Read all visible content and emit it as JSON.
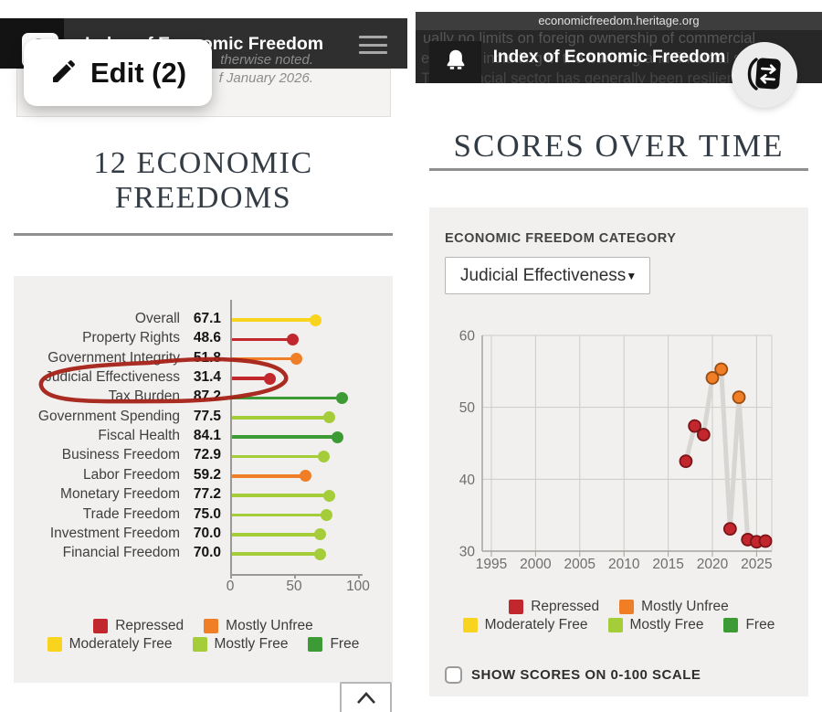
{
  "colors": {
    "red": "#c1272d",
    "orange": "#ef7e26",
    "yellow": "#f8d41f",
    "lightgreen": "#a5cd3a",
    "green": "#3d9b35"
  },
  "legend": {
    "rows": [
      [
        {
          "label": "Repressed",
          "color": "red"
        },
        {
          "label": "Mostly Unfree",
          "color": "orange"
        }
      ],
      [
        {
          "label": "Moderately Free",
          "color": "yellow"
        },
        {
          "label": "Mostly Free",
          "color": "lightgreen"
        },
        {
          "label": "Free",
          "color": "green"
        }
      ]
    ]
  },
  "left": {
    "header": {
      "title": "Index of Economic Freedom"
    },
    "edit_label": "Edit (2)",
    "disclaimer": {
      "line1": "therwise noted.",
      "line2": "f January 2026."
    },
    "heading": {
      "line1": "12 ECONOMIC",
      "line2": "FREEDOMS"
    }
  },
  "right": {
    "url": "economicfreedom.heritage.org",
    "header": {
      "title": "Index of Economic Freedom"
    },
    "bg_lines": [
      "ually no limits on foreign ownership of commercial",
      "erprises, including in the banking and financial s",
      "The financial sector has generally been resilien"
    ],
    "heading": "SCORES OVER TIME",
    "card": {
      "category_label": "ECONOMIC FREEDOM CATEGORY",
      "dropdown_value": "Judicial Effectiveness",
      "checkbox_label": "SHOW SCORES ON 0-100 SCALE"
    }
  },
  "chart_data": [
    {
      "type": "bar",
      "style": "lollipop",
      "title": "12 ECONOMIC FREEDOMS",
      "categories": [
        "Overall",
        "Property Rights",
        "Government Integrity",
        "Judicial Effectiveness",
        "Tax Burden",
        "Government Spending",
        "Fiscal Health",
        "Business Freedom",
        "Labor Freedom",
        "Monetary Freedom",
        "Trade Freedom",
        "Investment Freedom",
        "Financial Freedom"
      ],
      "values": [
        67.1,
        48.6,
        51.8,
        31.4,
        87.2,
        77.5,
        84.1,
        72.9,
        59.2,
        77.2,
        75.0,
        70.0,
        70.0
      ],
      "value_labels": [
        "67.1",
        "48.6",
        "51.8",
        "31.4",
        "87.2",
        "77.5",
        "84.1",
        "72.9",
        "59.2",
        "77.2",
        "75.0",
        "70.0",
        "70.0"
      ],
      "colors": [
        "yellow",
        "red",
        "orange",
        "red",
        "green",
        "lightgreen",
        "green",
        "lightgreen",
        "orange",
        "lightgreen",
        "lightgreen",
        "lightgreen",
        "lightgreen"
      ],
      "xlim": [
        0,
        100
      ],
      "xticks": [
        0,
        50,
        100
      ],
      "annotation": "hand-drawn red circle around Judicial Effectiveness 31.4"
    },
    {
      "type": "line",
      "style": "scatter-line",
      "title": "SCORES OVER TIME — Judicial Effectiveness",
      "x": [
        2017,
        2018,
        2019,
        2020,
        2021,
        2022,
        2023,
        2024,
        2025,
        2026
      ],
      "values": [
        42.5,
        47.4,
        46.2,
        54.1,
        55.3,
        33.1,
        51.4,
        31.6,
        31.3,
        31.4
      ],
      "colors": [
        "red",
        "red",
        "red",
        "orange",
        "orange",
        "red",
        "orange",
        "red",
        "red",
        "red"
      ],
      "xticks": [
        1995,
        2000,
        2005,
        2010,
        2015,
        2020,
        2025
      ],
      "yticks": [
        30,
        40,
        50,
        60
      ],
      "xlim": [
        1994,
        2027
      ],
      "ylim": [
        30,
        60
      ],
      "grid": true,
      "line_color": "#d8d6d3",
      "legend_position": "bottom"
    }
  ]
}
